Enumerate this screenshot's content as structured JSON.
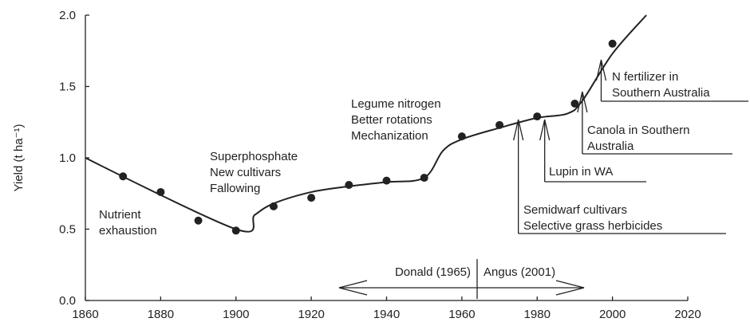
{
  "chart_data": {
    "type": "scatter",
    "y_label": "Yield (t ha⁻¹)",
    "xlim": [
      1860,
      2020
    ],
    "ylim": [
      0,
      2
    ],
    "xticks": [
      1860,
      1880,
      1900,
      1920,
      1940,
      1960,
      1980,
      2000,
      2020
    ],
    "yticks": [
      {
        "value": 0,
        "label": "0.0"
      },
      0.5,
      {
        "value": 1,
        "label": "1.0"
      },
      1.5,
      {
        "value": 2,
        "label": "2.0"
      }
    ],
    "grid": false,
    "color": "#222222",
    "series": [
      {
        "type": "scatter",
        "x": [
          1870,
          1880,
          1890,
          1900,
          1910,
          1920,
          1930,
          1940,
          1950,
          1960,
          1970,
          1980,
          1990,
          2000
        ],
        "values": [
          0.87,
          0.76,
          0.56,
          0.49,
          0.66,
          0.72,
          0.81,
          0.84,
          0.86,
          1.15,
          1.23,
          1.29,
          1.38,
          1.8
        ]
      },
      {
        "type": "line",
        "x": [
          1860,
          1900,
          1905,
          1910,
          1920,
          1930,
          1940,
          1950,
          1955,
          1960,
          1970,
          1980,
          1988,
          1992,
          2000,
          2009
        ],
        "values": [
          1.0,
          0.5,
          0.6,
          0.68,
          0.76,
          0.8,
          0.83,
          0.86,
          1.05,
          1.13,
          1.21,
          1.28,
          1.31,
          1.4,
          1.73,
          2.0
        ]
      }
    ],
    "annotations": [
      {
        "lines": [
          "Nutrient",
          "exhaustion"
        ]
      },
      {
        "lines": [
          "Superphosphate",
          "New cultivars",
          "Fallowing"
        ]
      },
      {
        "lines": [
          "Legume nitrogen",
          "Better rotations",
          "Mechanization"
        ]
      },
      {
        "lines": [
          "Semidwarf cultivars",
          "Selective grass herbicides"
        ],
        "year": 1975
      },
      {
        "lines": [
          "Lupin in WA"
        ],
        "year": 1982
      },
      {
        "lines": [
          "Canola in Southern",
          "Australia"
        ],
        "year": 1992
      },
      {
        "lines": [
          "N fertilizer in",
          "Southern Australia"
        ],
        "year": 1997
      }
    ],
    "periods": [
      "Donald (1965)",
      "Angus (2001)"
    ]
  }
}
